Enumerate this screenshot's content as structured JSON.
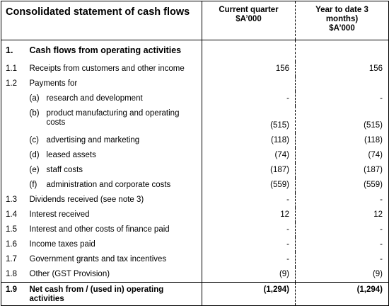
{
  "header": {
    "title": "Consolidated statement of cash flows",
    "col_current": "Current quarter $A'000",
    "col_current_l1": "Current quarter",
    "col_current_l2": "$A’000",
    "col_ytd_l1": "Year to date 3",
    "col_ytd_l2": "months)",
    "col_ytd_l3": "$A’000"
  },
  "section": {
    "num": "1.",
    "label": "Cash flows from operating activities"
  },
  "rows": [
    {
      "num": "1.1",
      "label": "Receipts from customers and other income",
      "current": "156",
      "ytd": "156"
    },
    {
      "num": "1.2",
      "label": "Payments for",
      "current": "",
      "ytd": ""
    },
    {
      "sub": "(a)",
      "label": "research and development",
      "current": "-",
      "ytd": "-"
    },
    {
      "sub": "(b)",
      "label_l1": "product manufacturing and operating",
      "label_l2": "costs",
      "current": "(515)",
      "ytd": "(515)"
    },
    {
      "sub": "(c)",
      "label": "advertising and marketing",
      "current": "(118)",
      "ytd": "(118)"
    },
    {
      "sub": "(d)",
      "label": "leased assets",
      "current": "(74)",
      "ytd": "(74)"
    },
    {
      "sub": "(e)",
      "label": "staff costs",
      "current": "(187)",
      "ytd": "(187)"
    },
    {
      "sub": "(f)",
      "label": "administration and corporate costs",
      "current": "(559)",
      "ytd": "(559)"
    },
    {
      "num": "1.3",
      "label": "Dividends received (see note 3)",
      "current": "-",
      "ytd": "-"
    },
    {
      "num": "1.4",
      "label": "Interest received",
      "current": "12",
      "ytd": "12"
    },
    {
      "num": "1.5",
      "label": "Interest and other costs of finance paid",
      "current": "-",
      "ytd": "-"
    },
    {
      "num": "1.6",
      "label": "Income taxes paid",
      "current": "-",
      "ytd": "-"
    },
    {
      "num": "1.7",
      "label": "Government grants and tax incentives",
      "current": "-",
      "ytd": "-"
    },
    {
      "num": "1.8",
      "label": "Other (GST Provision)",
      "current": "(9)",
      "ytd": "(9)"
    }
  ],
  "total": {
    "num": "1.9",
    "label_l1": "Net cash from / (used in) operating",
    "label_l2": "activities",
    "current": "(1,294)",
    "ytd": "(1,294)"
  }
}
